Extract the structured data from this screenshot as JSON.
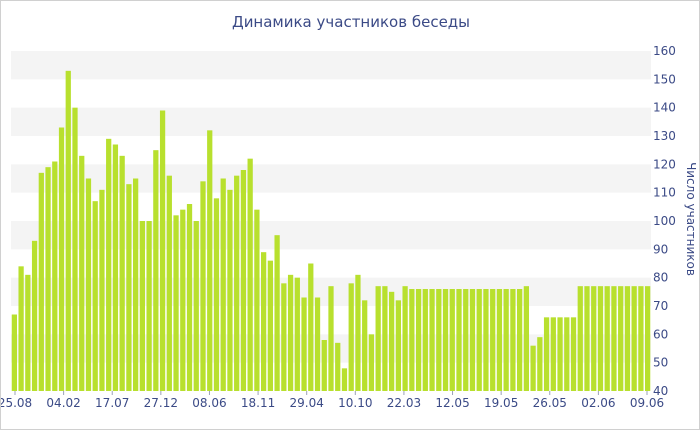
{
  "chart_data": {
    "type": "bar",
    "title": "Динамика участников беседы",
    "ylabel": "Число участников",
    "xlabel": "",
    "ylim": [
      40,
      160
    ],
    "ytick_step": 10,
    "grid": "alternating horizontal bands",
    "bar_color": "#b8e02e",
    "x_tick_labels": [
      "25.08",
      "04.02",
      "17.07",
      "27.12",
      "08.06",
      "18.11",
      "29.04",
      "10.10",
      "22.03",
      "12.05",
      "19.05",
      "26.05",
      "02.06",
      "09.06"
    ],
    "values": [
      67,
      84,
      81,
      93,
      117,
      119,
      121,
      133,
      153,
      140,
      123,
      115,
      107,
      111,
      129,
      127,
      123,
      113,
      115,
      100,
      100,
      125,
      139,
      116,
      102,
      104,
      106,
      100,
      114,
      132,
      108,
      115,
      111,
      116,
      118,
      122,
      104,
      89,
      86,
      95,
      78,
      81,
      80,
      73,
      85,
      73,
      58,
      77,
      57,
      48,
      78,
      81,
      72,
      60,
      77,
      77,
      75,
      72,
      77,
      76,
      76,
      76,
      76,
      76,
      76,
      76,
      76,
      76,
      76,
      76,
      76,
      76,
      76,
      76,
      76,
      76,
      77,
      56,
      59,
      66,
      66,
      66,
      66,
      66,
      77,
      77,
      77,
      77,
      77,
      77,
      77,
      77,
      77,
      77,
      77
    ]
  }
}
